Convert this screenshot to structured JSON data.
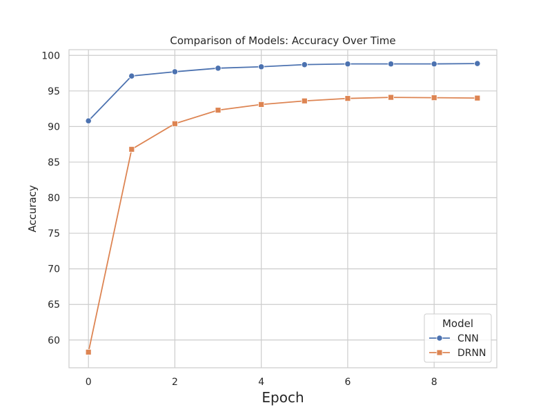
{
  "chart_data": {
    "type": "line",
    "title": "Comparison of Models: Accuracy Over Time",
    "xlabel": "Epoch",
    "ylabel": "Accuracy",
    "x": [
      0,
      1,
      2,
      3,
      4,
      5,
      6,
      7,
      8,
      9
    ],
    "xlim": [
      -0.45,
      9.45
    ],
    "ylim": [
      56.1,
      100.8
    ],
    "xticks": [
      0,
      2,
      4,
      6,
      8
    ],
    "yticks": [
      60,
      65,
      70,
      75,
      80,
      85,
      90,
      95,
      100
    ],
    "grid": true,
    "legend": {
      "title": "Model",
      "placement": "lower-right"
    },
    "series": [
      {
        "name": "CNN",
        "marker": "circle",
        "color": "#4c72b0",
        "values": [
          90.8,
          97.1,
          97.7,
          98.2,
          98.4,
          98.7,
          98.8,
          98.8,
          98.8,
          98.85
        ]
      },
      {
        "name": "DRNN",
        "marker": "square",
        "color": "#dd8452",
        "values": [
          58.3,
          86.8,
          90.4,
          92.3,
          93.1,
          93.6,
          93.95,
          94.1,
          94.05,
          94.0
        ]
      }
    ]
  }
}
